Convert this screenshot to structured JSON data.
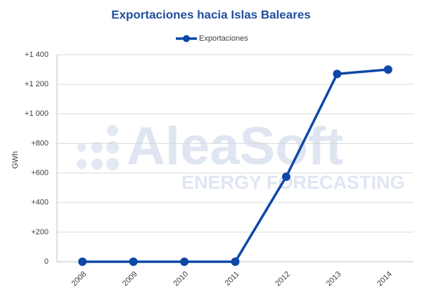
{
  "chart_data": {
    "type": "line",
    "title": "Exportaciones hacia Islas Baleares",
    "y_label": "GWh",
    "watermark": {
      "brand": "AleaSoft",
      "tagline": "ENERGY FORECASTING"
    },
    "categories": [
      "2008",
      "2009",
      "2010",
      "2011",
      "2012",
      "2013",
      "2014"
    ],
    "series": [
      {
        "name": "Exportaciones",
        "color": "#0d47a8",
        "values": [
          0,
          0,
          0,
          0,
          575,
          1270,
          1300
        ]
      }
    ],
    "ylim": [
      0,
      1400
    ],
    "yticks": [
      0,
      {
        "value": 200,
        "label": "+200"
      },
      {
        "value": 400,
        "label": "+400"
      },
      {
        "value": 600,
        "label": "+600"
      },
      {
        "value": 800,
        "label": "+800"
      },
      {
        "value": 1000,
        "label": "+1 000"
      },
      {
        "value": 1200,
        "label": "+1 200"
      },
      {
        "value": 1400,
        "label": "+1 400"
      }
    ],
    "grid": true,
    "legend": "top"
  }
}
